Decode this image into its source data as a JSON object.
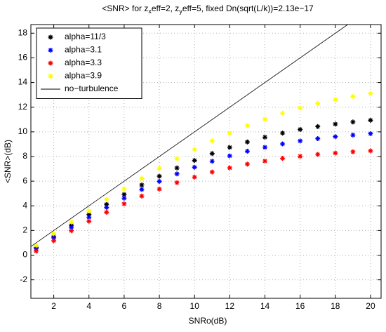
{
  "chart_data": {
    "type": "scatter",
    "title": [
      "<SNR> for z",
      "x",
      "eff=2, z",
      "y",
      "eff=5, fixed Dn(sqrt(L/k))=2.13e−17"
    ],
    "xlabel": "SNRo(dB)",
    "ylabel": "<SNR>(dB)",
    "x": [
      1,
      2,
      3,
      4,
      5,
      6,
      7,
      8,
      9,
      10,
      11,
      12,
      13,
      14,
      15,
      16,
      17,
      18,
      19,
      20
    ],
    "series": [
      {
        "name": "alpha=11/3",
        "color": "#000000",
        "marker": "asterisk",
        "values": [
          0.63,
          1.54,
          2.43,
          3.29,
          4.12,
          4.92,
          5.69,
          6.4,
          7.07,
          7.68,
          8.24,
          8.74,
          9.18,
          9.57,
          9.9,
          10.19,
          10.43,
          10.63,
          10.8,
          10.94
        ]
      },
      {
        "name": "alpha=3.1",
        "color": "#0000ff",
        "marker": "asterisk",
        "values": [
          0.52,
          1.4,
          2.26,
          3.08,
          3.87,
          4.62,
          5.33,
          5.98,
          6.59,
          7.13,
          7.62,
          8.05,
          8.43,
          8.75,
          9.02,
          9.26,
          9.45,
          9.61,
          9.74,
          9.85
        ]
      },
      {
        "name": "alpha=3.3",
        "color": "#ff0000",
        "marker": "asterisk",
        "values": [
          0.33,
          1.17,
          1.98,
          2.75,
          3.48,
          4.16,
          4.79,
          5.36,
          5.88,
          6.33,
          6.74,
          7.08,
          7.38,
          7.63,
          7.85,
          8.02,
          8.17,
          8.28,
          8.38,
          8.46
        ]
      },
      {
        "name": "alpha=3.9",
        "color": "#ffff00",
        "marker": "asterisk",
        "values": [
          0.79,
          1.74,
          2.68,
          3.59,
          4.5,
          5.37,
          6.22,
          7.04,
          7.83,
          8.57,
          9.27,
          9.91,
          10.5,
          11.03,
          11.51,
          11.93,
          12.3,
          12.61,
          12.87,
          13.1
        ]
      },
      {
        "name": "no−turbulence",
        "color": "#000000",
        "marker": "line",
        "x": [
          0.7,
          18.7
        ],
        "values": [
          0.7,
          18.7
        ]
      }
    ],
    "xlim": [
      0.7,
      20.6
    ],
    "ylim": [
      -3.5,
      18.7
    ],
    "xticks": [
      2,
      4,
      6,
      8,
      10,
      12,
      14,
      16,
      18,
      20
    ],
    "yticks": [
      -2,
      0,
      2,
      4,
      6,
      8,
      10,
      12,
      14,
      16,
      18
    ],
    "grid": true,
    "legend": "upper left"
  }
}
